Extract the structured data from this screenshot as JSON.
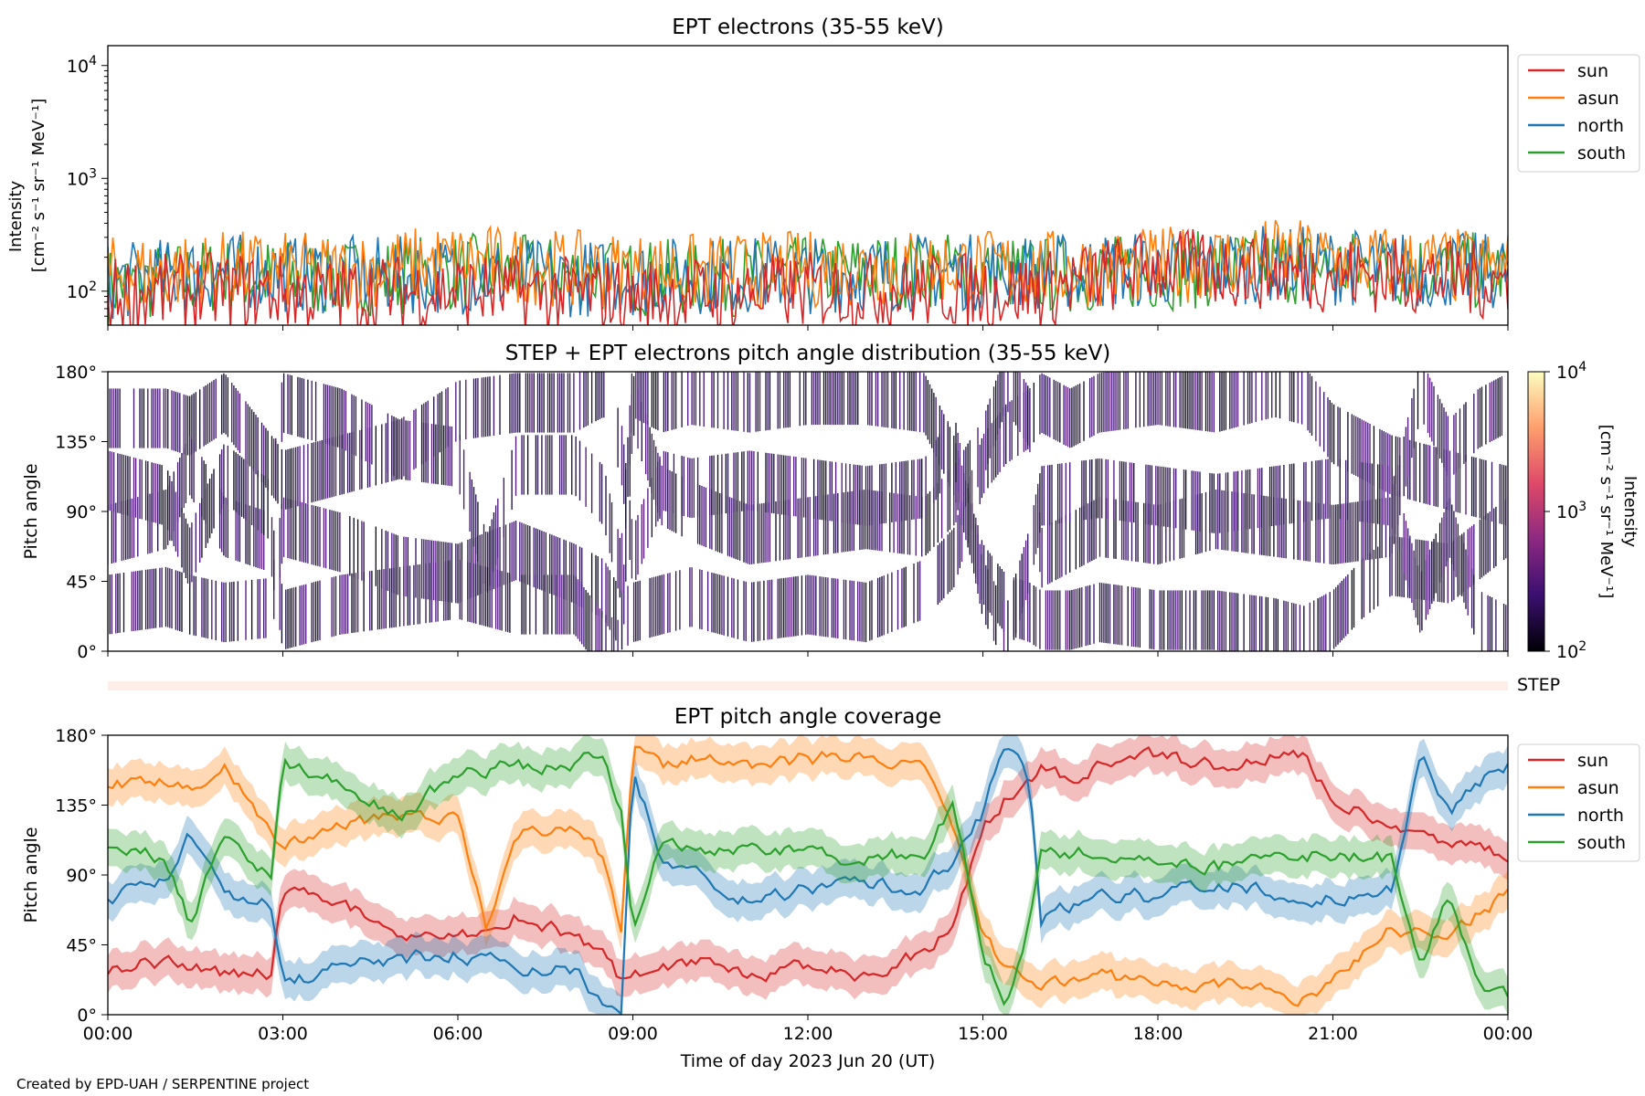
{
  "figure": {
    "footer": "Created by EPD-UAH / SERPENTINE project",
    "xlabel": "Time of day 2023 Jun 20 (UT)",
    "x_ticks": [
      "00:00",
      "03:00",
      "06:00",
      "09:00",
      "12:00",
      "15:00",
      "18:00",
      "21:00",
      "00:00"
    ]
  },
  "colors": {
    "sun": "#d62728",
    "asun": "#ff7f0e",
    "north": "#1f77b4",
    "south": "#2ca02c"
  },
  "chart_data": [
    {
      "type": "line",
      "title": "EPT electrons (35-55 keV)",
      "ylabel": "Intensity",
      "ylabel_unit": "[cm⁻² s⁻¹ sr⁻¹ MeV⁻¹]",
      "yscale": "log",
      "ylim": [
        50,
        15000
      ],
      "y_ticks": [
        {
          "value": 100,
          "base": "10",
          "exp": "2"
        },
        {
          "value": 1000,
          "base": "10",
          "exp": "3"
        },
        {
          "value": 10000,
          "base": "10",
          "exp": "4"
        }
      ],
      "x_unit": "hours UT",
      "xlim": [
        0,
        24
      ],
      "legend": {
        "position": "outside-right-top",
        "entries": [
          "sun",
          "asun",
          "north",
          "south"
        ]
      },
      "series": [
        {
          "name": "south",
          "x": [
            0,
            2,
            4,
            6,
            8,
            10,
            12,
            14,
            16,
            18,
            20,
            22,
            24
          ],
          "values": [
            120,
            150,
            140,
            160,
            150,
            140,
            150,
            170,
            150,
            160,
            180,
            170,
            160
          ]
        },
        {
          "name": "north",
          "x": [
            0,
            2,
            4,
            6,
            8,
            10,
            12,
            14,
            16,
            18,
            20,
            22,
            24
          ],
          "values": [
            130,
            160,
            150,
            150,
            140,
            150,
            150,
            160,
            160,
            170,
            190,
            170,
            160
          ]
        },
        {
          "name": "asun",
          "x": [
            0,
            2,
            4,
            6,
            8,
            10,
            12,
            14,
            16,
            18,
            20,
            22,
            24
          ],
          "values": [
            150,
            170,
            160,
            200,
            170,
            160,
            170,
            180,
            170,
            180,
            220,
            190,
            170
          ]
        },
        {
          "name": "sun",
          "x": [
            0,
            2,
            4,
            6,
            8,
            10,
            12,
            14,
            16,
            18,
            20,
            22,
            24
          ],
          "values": [
            100,
            110,
            100,
            110,
            100,
            100,
            110,
            110,
            110,
            180,
            160,
            150,
            130
          ]
        }
      ]
    },
    {
      "type": "heatmap",
      "title": "STEP + EPT electrons pitch angle distribution (35-55 keV)",
      "ylabel": "Pitch angle",
      "y_ticks": [
        "0°",
        "45°",
        "90°",
        "135°",
        "180°"
      ],
      "ylim": [
        0,
        180
      ],
      "xlim": [
        0,
        24
      ],
      "colorbar": {
        "label": "Intensity",
        "unit": "[cm⁻² s⁻¹ sr⁻¹ MeV⁻¹]",
        "scale": "log",
        "range": [
          100,
          10000
        ],
        "ticks": [
          {
            "base": "10",
            "exp": "2"
          },
          {
            "base": "10",
            "exp": "3"
          },
          {
            "base": "10",
            "exp": "4"
          }
        ],
        "colors": [
          "#000004",
          "#3b0f70",
          "#8c2981",
          "#de4968",
          "#fe9f6d",
          "#fcfdbf"
        ]
      },
      "note": "Sparse striped pattern of low intensity values (~10^2, dark purple) with white gaps where no data"
    },
    {
      "type": "bar",
      "label": "STEP",
      "note": "Thin empty strip (very light pink) spanning the full time range"
    },
    {
      "type": "line",
      "title": "EPT pitch angle coverage",
      "ylabel": "Pitch angle",
      "y_ticks": [
        "0°",
        "45°",
        "90°",
        "135°",
        "180°"
      ],
      "ylim": [
        0,
        180
      ],
      "x_unit": "hours UT",
      "xlim": [
        0,
        24
      ],
      "band_halfwidth_deg": 12,
      "legend": {
        "position": "outside-right-top",
        "entries": [
          "sun",
          "asun",
          "north",
          "south"
        ]
      },
      "series": [
        {
          "name": "sun",
          "x": [
            0,
            1,
            1.4,
            2,
            2.8,
            3,
            4,
            5,
            6,
            7,
            8,
            8.5,
            8.8,
            9,
            9.5,
            10,
            11,
            12,
            13,
            14,
            14.5,
            15,
            15.4,
            15.8,
            16,
            16.5,
            17,
            18,
            19,
            20,
            20.5,
            21,
            21.5,
            22,
            23,
            24
          ],
          "values": [
            30,
            35,
            30,
            25,
            28,
            80,
            70,
            55,
            50,
            65,
            50,
            40,
            20,
            25,
            30,
            35,
            25,
            30,
            25,
            40,
            60,
            120,
            140,
            150,
            160,
            150,
            160,
            165,
            160,
            170,
            165,
            140,
            130,
            120,
            110,
            100
          ]
        },
        {
          "name": "asun",
          "x": [
            0,
            1,
            1.4,
            2,
            3,
            4,
            5,
            6,
            6.5,
            7,
            8,
            8.5,
            8.8,
            9,
            9.5,
            10,
            11,
            12,
            13,
            14,
            14.5,
            15,
            15.4,
            15.8,
            16,
            16.5,
            17,
            18,
            19,
            20,
            20.5,
            21,
            21.5,
            22,
            23,
            24
          ],
          "values": [
            150,
            150,
            145,
            160,
            110,
            120,
            130,
            125,
            55,
            120,
            120,
            100,
            50,
            170,
            160,
            165,
            160,
            165,
            165,
            160,
            120,
            50,
            30,
            25,
            20,
            20,
            25,
            20,
            20,
            15,
            10,
            20,
            40,
            55,
            50,
            80
          ]
        },
        {
          "name": "north",
          "x": [
            0,
            1,
            1.4,
            2,
            2.8,
            3,
            4,
            5,
            6,
            7,
            8,
            8.5,
            8.8,
            9,
            9.5,
            10,
            11,
            12,
            13,
            14,
            14.5,
            15,
            15.4,
            15.8,
            16,
            17,
            18,
            19,
            20,
            21,
            22,
            22.5,
            23,
            23.5,
            24
          ],
          "values": [
            75,
            85,
            120,
            80,
            70,
            20,
            30,
            35,
            40,
            30,
            30,
            5,
            0,
            160,
            100,
            90,
            75,
            80,
            85,
            80,
            100,
            130,
            175,
            150,
            60,
            80,
            75,
            85,
            80,
            75,
            80,
            170,
            130,
            150,
            160
          ]
        },
        {
          "name": "south",
          "x": [
            0,
            1,
            1.4,
            2,
            2.8,
            3,
            4,
            5,
            6,
            7,
            8,
            8.5,
            8.8,
            9,
            9.5,
            10,
            11,
            12,
            13,
            14,
            14.5,
            15,
            15.4,
            15.8,
            16,
            17,
            18,
            19,
            20,
            21,
            22,
            22.5,
            23,
            23.5,
            24
          ],
          "values": [
            110,
            100,
            60,
            115,
            90,
            160,
            150,
            130,
            155,
            160,
            160,
            170,
            130,
            60,
            110,
            105,
            110,
            105,
            100,
            105,
            135,
            40,
            10,
            60,
            100,
            105,
            100,
            95,
            100,
            105,
            100,
            30,
            80,
            20,
            10
          ]
        }
      ]
    }
  ]
}
